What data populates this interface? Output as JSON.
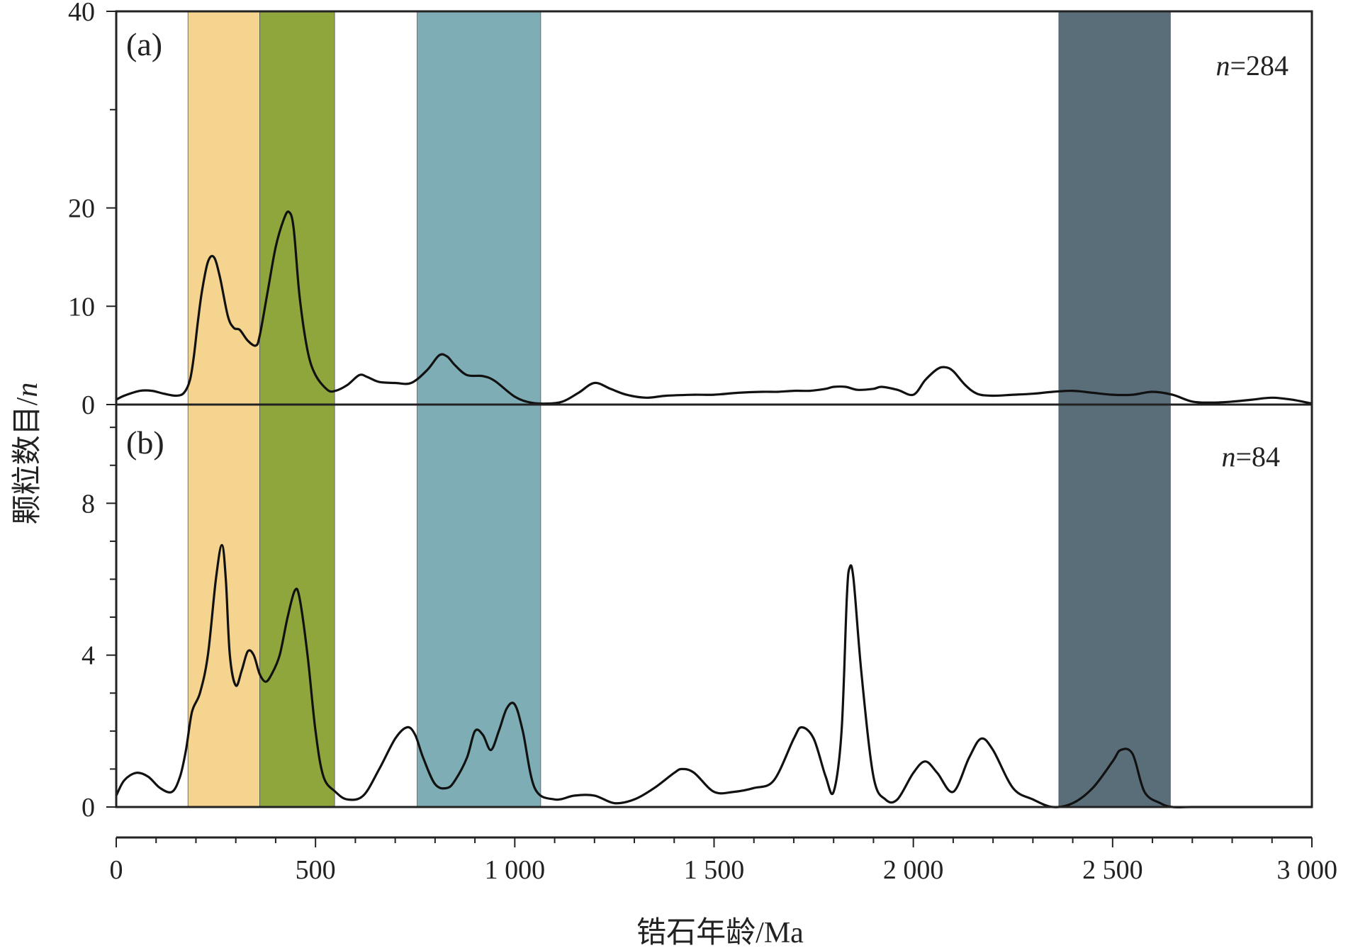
{
  "chart_data": [
    {
      "type": "line",
      "panel_label": "(a)",
      "annotation_prefix": "n",
      "annotation_value": "=284",
      "ylim": [
        0,
        40
      ],
      "y_ticks": [
        0,
        10,
        20,
        30,
        40
      ],
      "y_tick_labels": [
        "0",
        "10",
        "20",
        "",
        "40"
      ],
      "series": [
        {
          "x": [
            0,
            20,
            60,
            90,
            120,
            150,
            170,
            185,
            195,
            205,
            215,
            230,
            245,
            260,
            280,
            295,
            310,
            330,
            350,
            360,
            380,
            400,
            420,
            433,
            445,
            460,
            480,
            500,
            530,
            550,
            580,
            610,
            630,
            660,
            700,
            740,
            780,
            810,
            830,
            850,
            880,
            920,
            950,
            1000,
            1040,
            1080,
            1120,
            1160,
            1200,
            1240,
            1280,
            1330,
            1380,
            1450,
            1500,
            1560,
            1620,
            1660,
            1700,
            1740,
            1780,
            1800,
            1830,
            1860,
            1900,
            1920,
            1960,
            2000,
            2030,
            2060,
            2080,
            2100,
            2130,
            2160,
            2200,
            2250,
            2300,
            2350,
            2400,
            2450,
            2500,
            2550,
            2600,
            2650,
            2700,
            2750,
            2800,
            2850,
            2900,
            2950,
            3000
          ],
          "y": [
            0.5,
            0.9,
            1.4,
            1.4,
            1.1,
            0.9,
            1.2,
            2.5,
            5.0,
            8.5,
            11.5,
            14.5,
            15.0,
            13.0,
            9.0,
            7.8,
            7.6,
            6.5,
            6.0,
            7.0,
            11.5,
            16.0,
            18.8,
            19.6,
            18.0,
            11.0,
            5.5,
            3.0,
            1.5,
            1.4,
            2.0,
            3.0,
            2.8,
            2.3,
            2.2,
            2.2,
            3.5,
            5.0,
            4.9,
            4.0,
            3.0,
            2.9,
            2.4,
            0.8,
            0.2,
            0.1,
            0.3,
            1.2,
            2.2,
            1.6,
            1.0,
            0.7,
            0.9,
            1.0,
            1.0,
            1.2,
            1.3,
            1.3,
            1.4,
            1.4,
            1.6,
            1.8,
            1.8,
            1.5,
            1.6,
            1.8,
            1.5,
            1.0,
            2.5,
            3.6,
            3.8,
            3.4,
            2.0,
            1.1,
            0.9,
            1.0,
            1.1,
            1.3,
            1.4,
            1.2,
            1.0,
            1.0,
            1.3,
            1.0,
            0.3,
            0.2,
            0.3,
            0.5,
            0.7,
            0.5,
            0.1
          ]
        }
      ]
    },
    {
      "type": "line",
      "panel_label": "(b)",
      "annotation_prefix": "n",
      "annotation_value": "=84",
      "ylim": [
        0,
        10.6
      ],
      "y_ticks": [
        0,
        1,
        2,
        3,
        4,
        5,
        6,
        7,
        8,
        9,
        10
      ],
      "y_tick_labels": [
        "0",
        "",
        "",
        "",
        "4",
        "",
        "",
        "",
        "8",
        "",
        ""
      ],
      "series": [
        {
          "x": [
            0,
            20,
            50,
            80,
            110,
            140,
            160,
            175,
            190,
            210,
            230,
            250,
            265,
            275,
            285,
            300,
            315,
            330,
            345,
            360,
            375,
            390,
            410,
            430,
            448,
            460,
            480,
            500,
            520,
            550,
            580,
            620,
            660,
            700,
            730,
            750,
            770,
            800,
            830,
            850,
            880,
            900,
            920,
            940,
            960,
            980,
            1000,
            1020,
            1050,
            1100,
            1150,
            1200,
            1250,
            1300,
            1350,
            1400,
            1420,
            1450,
            1500,
            1550,
            1600,
            1650,
            1700,
            1720,
            1750,
            1780,
            1800,
            1820,
            1833,
            1840,
            1850,
            1870,
            1900,
            1930,
            1960,
            2000,
            2030,
            2060,
            2100,
            2140,
            2170,
            2200,
            2250,
            2300,
            2350,
            2400,
            2450,
            2500,
            2520,
            2550,
            2580,
            2620,
            2650,
            2700,
            2800,
            2900,
            3000
          ],
          "y": [
            0.3,
            0.7,
            0.9,
            0.8,
            0.5,
            0.4,
            0.8,
            1.5,
            2.5,
            3.0,
            4.0,
            6.0,
            6.9,
            6.0,
            4.0,
            3.2,
            3.6,
            4.1,
            4.0,
            3.5,
            3.3,
            3.5,
            4.0,
            5.0,
            5.7,
            5.5,
            4.0,
            2.0,
            0.8,
            0.4,
            0.2,
            0.3,
            1.0,
            1.8,
            2.1,
            1.9,
            1.3,
            0.6,
            0.5,
            0.7,
            1.3,
            2.0,
            1.9,
            1.5,
            2.0,
            2.6,
            2.7,
            2.0,
            0.5,
            0.2,
            0.3,
            0.3,
            0.1,
            0.2,
            0.5,
            0.9,
            1.0,
            0.9,
            0.4,
            0.4,
            0.5,
            0.7,
            1.8,
            2.1,
            1.8,
            0.8,
            0.4,
            2.0,
            5.5,
            6.3,
            6.0,
            3.5,
            0.8,
            0.2,
            0.2,
            0.9,
            1.2,
            0.9,
            0.4,
            1.3,
            1.8,
            1.5,
            0.5,
            0.2,
            0.0,
            0.1,
            0.5,
            1.2,
            1.5,
            1.4,
            0.4,
            0.1,
            0.0,
            0.0,
            0.0,
            0.0,
            0.0
          ]
        }
      ]
    }
  ],
  "shared": {
    "xlim": [
      0,
      3000
    ],
    "x_ticks": [
      0,
      500,
      1000,
      1500,
      2000,
      2500,
      3000
    ],
    "x_tick_labels": [
      "0",
      "500",
      "1 000",
      "1 500",
      "2 000",
      "2 500",
      "3 000"
    ],
    "xlabel": "锆石年龄/Ma",
    "ylabel_main": "颗粒数目/",
    "ylabel_italic": "n",
    "bands": [
      {
        "from": 180,
        "to": 360,
        "color": "#F5D490"
      },
      {
        "from": 360,
        "to": 548,
        "color": "#8FA63C"
      },
      {
        "from": 755,
        "to": 1065,
        "color": "#7FADB5"
      },
      {
        "from": 2365,
        "to": 2645,
        "color": "#5A6E79"
      }
    ],
    "line_color": "#111111"
  }
}
